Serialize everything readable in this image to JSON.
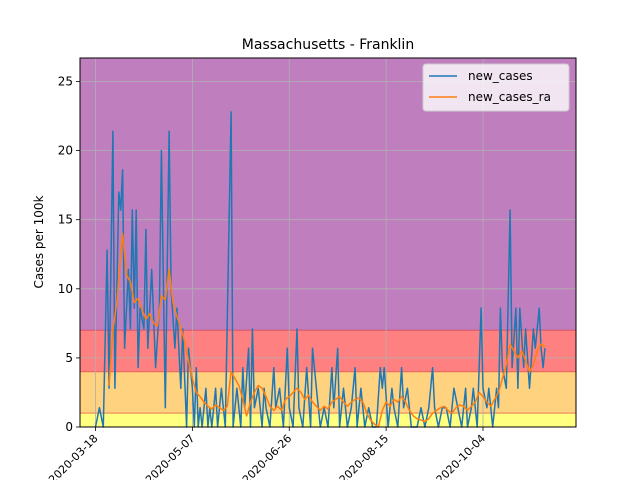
{
  "chart_data": {
    "type": "line",
    "title": "Massachusetts - Franklin",
    "xlabel": "",
    "ylabel": "Cases per 100k",
    "x_range": [
      "2020-03-10",
      "2020-11-21"
    ],
    "ylim": [
      0,
      26.7
    ],
    "x_ticks": [
      "2020-03-18",
      "2020-05-07",
      "2020-06-26",
      "2020-08-15",
      "2020-10-04"
    ],
    "y_ticks": [
      0,
      5,
      10,
      15,
      20,
      25
    ],
    "grid": true,
    "legend_position": "top-right",
    "bands": [
      {
        "from": 0,
        "to": 1,
        "color": "#ffff80"
      },
      {
        "from": 1,
        "to": 4,
        "color": "#ffd280"
      },
      {
        "from": 4,
        "to": 7,
        "color": "#ff8080"
      },
      {
        "from": 7,
        "to": 26.7,
        "color": "#bf7fbf"
      }
    ],
    "series": [
      {
        "name": "new_cases",
        "color": "#1f77b4",
        "points": [
          [
            "2020-03-18",
            0
          ],
          [
            "2020-03-20",
            1.4
          ],
          [
            "2020-03-22",
            0
          ],
          [
            "2020-03-24",
            12.8
          ],
          [
            "2020-03-25",
            2.8
          ],
          [
            "2020-03-27",
            21.4
          ],
          [
            "2020-03-28",
            2.8
          ],
          [
            "2020-03-30",
            17
          ],
          [
            "2020-03-31",
            15.7
          ],
          [
            "2020-04-01",
            18.6
          ],
          [
            "2020-04-02",
            5.7
          ],
          [
            "2020-04-04",
            11.4
          ],
          [
            "2020-04-05",
            7.1
          ],
          [
            "2020-04-06",
            15.7
          ],
          [
            "2020-04-07",
            8.6
          ],
          [
            "2020-04-08",
            15.7
          ],
          [
            "2020-04-09",
            4.3
          ],
          [
            "2020-04-10",
            8.6
          ],
          [
            "2020-04-12",
            7.1
          ],
          [
            "2020-04-13",
            14.3
          ],
          [
            "2020-04-14",
            5.7
          ],
          [
            "2020-04-16",
            11.4
          ],
          [
            "2020-04-18",
            4.3
          ],
          [
            "2020-04-20",
            8.6
          ],
          [
            "2020-04-21",
            20
          ],
          [
            "2020-04-23",
            1.4
          ],
          [
            "2020-04-25",
            21.4
          ],
          [
            "2020-04-26",
            10
          ],
          [
            "2020-04-28",
            5.7
          ],
          [
            "2020-04-29",
            8.6
          ],
          [
            "2020-05-01",
            2.8
          ],
          [
            "2020-05-02",
            7.1
          ],
          [
            "2020-05-04",
            0
          ],
          [
            "2020-05-05",
            5.7
          ],
          [
            "2020-05-07",
            2.8
          ],
          [
            "2020-05-08",
            0
          ],
          [
            "2020-05-09",
            4.3
          ],
          [
            "2020-05-10",
            0
          ],
          [
            "2020-05-11",
            1.4
          ],
          [
            "2020-05-12",
            0
          ],
          [
            "2020-05-14",
            2.8
          ],
          [
            "2020-05-15",
            0
          ],
          [
            "2020-05-16",
            1.4
          ],
          [
            "2020-05-17",
            0
          ],
          [
            "2020-05-19",
            2.8
          ],
          [
            "2020-05-20",
            0
          ],
          [
            "2020-05-22",
            2.8
          ],
          [
            "2020-05-24",
            0
          ],
          [
            "2020-05-27",
            22.8
          ],
          [
            "2020-05-28",
            0
          ],
          [
            "2020-05-30",
            2.8
          ],
          [
            "2020-06-01",
            0
          ],
          [
            "2020-06-02",
            4.3
          ],
          [
            "2020-06-03",
            1.4
          ],
          [
            "2020-06-05",
            5.7
          ],
          [
            "2020-06-06",
            0
          ],
          [
            "2020-06-07",
            7.1
          ],
          [
            "2020-06-08",
            1.4
          ],
          [
            "2020-06-10",
            2.8
          ],
          [
            "2020-06-12",
            0
          ],
          [
            "2020-06-13",
            2.8
          ],
          [
            "2020-06-14",
            1.4
          ],
          [
            "2020-06-16",
            0
          ],
          [
            "2020-06-18",
            4.3
          ],
          [
            "2020-06-19",
            1.4
          ],
          [
            "2020-06-21",
            2.8
          ],
          [
            "2020-06-23",
            0
          ],
          [
            "2020-06-25",
            5.7
          ],
          [
            "2020-06-26",
            1.4
          ],
          [
            "2020-06-28",
            0
          ],
          [
            "2020-06-30",
            7.1
          ],
          [
            "2020-07-01",
            1.4
          ],
          [
            "2020-07-03",
            0
          ],
          [
            "2020-07-05",
            4.3
          ],
          [
            "2020-07-07",
            0
          ],
          [
            "2020-07-08",
            5.7
          ],
          [
            "2020-07-10",
            2.8
          ],
          [
            "2020-07-12",
            0
          ],
          [
            "2020-07-14",
            1.4
          ],
          [
            "2020-07-16",
            0
          ],
          [
            "2020-07-18",
            4.3
          ],
          [
            "2020-07-19",
            1.4
          ],
          [
            "2020-07-21",
            5.7
          ],
          [
            "2020-07-22",
            0
          ],
          [
            "2020-07-24",
            2.8
          ],
          [
            "2020-07-26",
            0
          ],
          [
            "2020-07-28",
            1.4
          ],
          [
            "2020-07-30",
            4.3
          ],
          [
            "2020-07-31",
            0
          ],
          [
            "2020-08-02",
            2.8
          ],
          [
            "2020-08-04",
            0
          ],
          [
            "2020-08-06",
            1.4
          ],
          [
            "2020-08-08",
            0
          ],
          [
            "2020-08-10",
            0
          ],
          [
            "2020-08-12",
            4.3
          ],
          [
            "2020-08-13",
            2.8
          ],
          [
            "2020-08-14",
            4.3
          ],
          [
            "2020-08-16",
            0
          ],
          [
            "2020-08-18",
            2.8
          ],
          [
            "2020-08-19",
            1.4
          ],
          [
            "2020-08-21",
            0
          ],
          [
            "2020-08-23",
            4.3
          ],
          [
            "2020-08-24",
            1.4
          ],
          [
            "2020-08-26",
            2.8
          ],
          [
            "2020-08-28",
            0
          ],
          [
            "2020-08-31",
            0
          ],
          [
            "2020-09-02",
            1.4
          ],
          [
            "2020-09-04",
            0
          ],
          [
            "2020-09-06",
            1.4
          ],
          [
            "2020-09-08",
            4.3
          ],
          [
            "2020-09-09",
            1.4
          ],
          [
            "2020-09-11",
            0
          ],
          [
            "2020-09-13",
            1.4
          ],
          [
            "2020-09-15",
            1.4
          ],
          [
            "2020-09-17",
            0
          ],
          [
            "2020-09-19",
            2.8
          ],
          [
            "2020-09-21",
            1.4
          ],
          [
            "2020-09-23",
            0
          ],
          [
            "2020-09-25",
            2.8
          ],
          [
            "2020-09-26",
            0
          ],
          [
            "2020-09-28",
            1.4
          ],
          [
            "2020-09-29",
            2.8
          ],
          [
            "2020-10-01",
            0
          ],
          [
            "2020-10-03",
            8.6
          ],
          [
            "2020-10-04",
            2.8
          ],
          [
            "2020-10-06",
            1.4
          ],
          [
            "2020-10-07",
            2.8
          ],
          [
            "2020-10-09",
            0
          ],
          [
            "2020-10-11",
            2.8
          ],
          [
            "2020-10-12",
            1.4
          ],
          [
            "2020-10-13",
            8.6
          ],
          [
            "2020-10-14",
            4.3
          ],
          [
            "2020-10-16",
            2.8
          ],
          [
            "2020-10-18",
            15.7
          ],
          [
            "2020-10-19",
            4.3
          ],
          [
            "2020-10-21",
            8.6
          ],
          [
            "2020-10-22",
            2.8
          ],
          [
            "2020-10-23",
            8.6
          ],
          [
            "2020-10-25",
            4.3
          ],
          [
            "2020-10-26",
            7.1
          ],
          [
            "2020-10-28",
            2.8
          ],
          [
            "2020-10-30",
            7.1
          ],
          [
            "2020-10-31",
            5.7
          ],
          [
            "2020-11-02",
            8.6
          ],
          [
            "2020-11-03",
            5.7
          ],
          [
            "2020-11-04",
            4.3
          ],
          [
            "2020-11-05",
            5.7
          ]
        ]
      },
      {
        "name": "new_cases_ra",
        "color": "#ff7f0e",
        "points": [
          [
            "2020-03-25",
            3
          ],
          [
            "2020-03-27",
            7
          ],
          [
            "2020-03-29",
            9
          ],
          [
            "2020-03-31",
            12.5
          ],
          [
            "2020-04-01",
            14
          ],
          [
            "2020-04-03",
            11
          ],
          [
            "2020-04-05",
            10.5
          ],
          [
            "2020-04-07",
            9
          ],
          [
            "2020-04-09",
            9.3
          ],
          [
            "2020-04-11",
            8.5
          ],
          [
            "2020-04-13",
            7.8
          ],
          [
            "2020-04-15",
            8.2
          ],
          [
            "2020-04-17",
            7.5
          ],
          [
            "2020-04-19",
            7.3
          ],
          [
            "2020-04-21",
            9.5
          ],
          [
            "2020-04-23",
            9.2
          ],
          [
            "2020-04-25",
            11.4
          ],
          [
            "2020-04-27",
            9
          ],
          [
            "2020-04-29",
            8
          ],
          [
            "2020-05-01",
            7.2
          ],
          [
            "2020-05-03",
            6.2
          ],
          [
            "2020-05-05",
            4.8
          ],
          [
            "2020-05-07",
            3.5
          ],
          [
            "2020-05-09",
            2.5
          ],
          [
            "2020-05-11",
            2.2
          ],
          [
            "2020-05-13",
            1.8
          ],
          [
            "2020-05-15",
            1.5
          ],
          [
            "2020-05-17",
            1.3
          ],
          [
            "2020-05-19",
            1.6
          ],
          [
            "2020-05-21",
            1.4
          ],
          [
            "2020-05-23",
            1.2
          ],
          [
            "2020-05-25",
            1.5
          ],
          [
            "2020-05-27",
            4
          ],
          [
            "2020-05-29",
            3.5
          ],
          [
            "2020-05-31",
            3
          ],
          [
            "2020-06-02",
            2
          ],
          [
            "2020-06-04",
            0.8
          ],
          [
            "2020-06-06",
            1.8
          ],
          [
            "2020-06-08",
            2.5
          ],
          [
            "2020-06-10",
            3
          ],
          [
            "2020-06-12",
            2.8
          ],
          [
            "2020-06-14",
            2.2
          ],
          [
            "2020-06-16",
            1.5
          ],
          [
            "2020-06-18",
            1.2
          ],
          [
            "2020-06-20",
            1.5
          ],
          [
            "2020-06-22",
            1.2
          ],
          [
            "2020-06-24",
            2
          ],
          [
            "2020-06-26",
            2.2
          ],
          [
            "2020-06-28",
            2.5
          ],
          [
            "2020-06-30",
            2.8
          ],
          [
            "2020-07-02",
            2.5
          ],
          [
            "2020-07-04",
            2
          ],
          [
            "2020-07-06",
            2.3
          ],
          [
            "2020-07-08",
            1.8
          ],
          [
            "2020-07-10",
            1.5
          ],
          [
            "2020-07-12",
            1.2
          ],
          [
            "2020-07-14",
            1.5
          ],
          [
            "2020-07-16",
            1.3
          ],
          [
            "2020-07-18",
            1.8
          ],
          [
            "2020-07-20",
            2
          ],
          [
            "2020-07-22",
            2.2
          ],
          [
            "2020-07-24",
            1.8
          ],
          [
            "2020-07-26",
            1.5
          ],
          [
            "2020-07-28",
            1.8
          ],
          [
            "2020-07-30",
            2
          ],
          [
            "2020-08-01",
            2.1
          ],
          [
            "2020-08-03",
            1.8
          ],
          [
            "2020-08-05",
            1
          ],
          [
            "2020-08-07",
            0.5
          ],
          [
            "2020-08-09",
            0.2
          ],
          [
            "2020-08-11",
            0
          ],
          [
            "2020-08-13",
            1.2
          ],
          [
            "2020-08-15",
            1.8
          ],
          [
            "2020-08-17",
            1.5
          ],
          [
            "2020-08-19",
            2
          ],
          [
            "2020-08-21",
            1.8
          ],
          [
            "2020-08-23",
            2.2
          ],
          [
            "2020-08-25",
            1.8
          ],
          [
            "2020-08-27",
            1.2
          ],
          [
            "2020-08-29",
            0.8
          ],
          [
            "2020-08-31",
            0.6
          ],
          [
            "2020-09-02",
            0.5
          ],
          [
            "2020-09-04",
            0.4
          ],
          [
            "2020-09-06",
            0.6
          ],
          [
            "2020-09-08",
            1
          ],
          [
            "2020-09-10",
            1.2
          ],
          [
            "2020-09-12",
            1.4
          ],
          [
            "2020-09-14",
            1.5
          ],
          [
            "2020-09-16",
            1.2
          ],
          [
            "2020-09-18",
            1
          ],
          [
            "2020-09-20",
            1.4
          ],
          [
            "2020-09-22",
            1.6
          ],
          [
            "2020-09-24",
            1.5
          ],
          [
            "2020-09-26",
            1.2
          ],
          [
            "2020-09-28",
            1.5
          ],
          [
            "2020-09-30",
            1.8
          ],
          [
            "2020-10-02",
            2.5
          ],
          [
            "2020-10-04",
            2.2
          ],
          [
            "2020-10-06",
            1.8
          ],
          [
            "2020-10-08",
            1.5
          ],
          [
            "2020-10-10",
            2
          ],
          [
            "2020-10-12",
            2.5
          ],
          [
            "2020-10-14",
            3.5
          ],
          [
            "2020-10-16",
            4.5
          ],
          [
            "2020-10-18",
            6
          ],
          [
            "2020-10-20",
            5.5
          ],
          [
            "2020-10-22",
            5
          ],
          [
            "2020-10-24",
            5.5
          ],
          [
            "2020-10-26",
            4.8
          ],
          [
            "2020-10-28",
            4
          ],
          [
            "2020-10-30",
            4.5
          ],
          [
            "2020-11-01",
            5.5
          ],
          [
            "2020-11-03",
            6
          ],
          [
            "2020-11-05",
            5.8
          ]
        ]
      }
    ]
  }
}
